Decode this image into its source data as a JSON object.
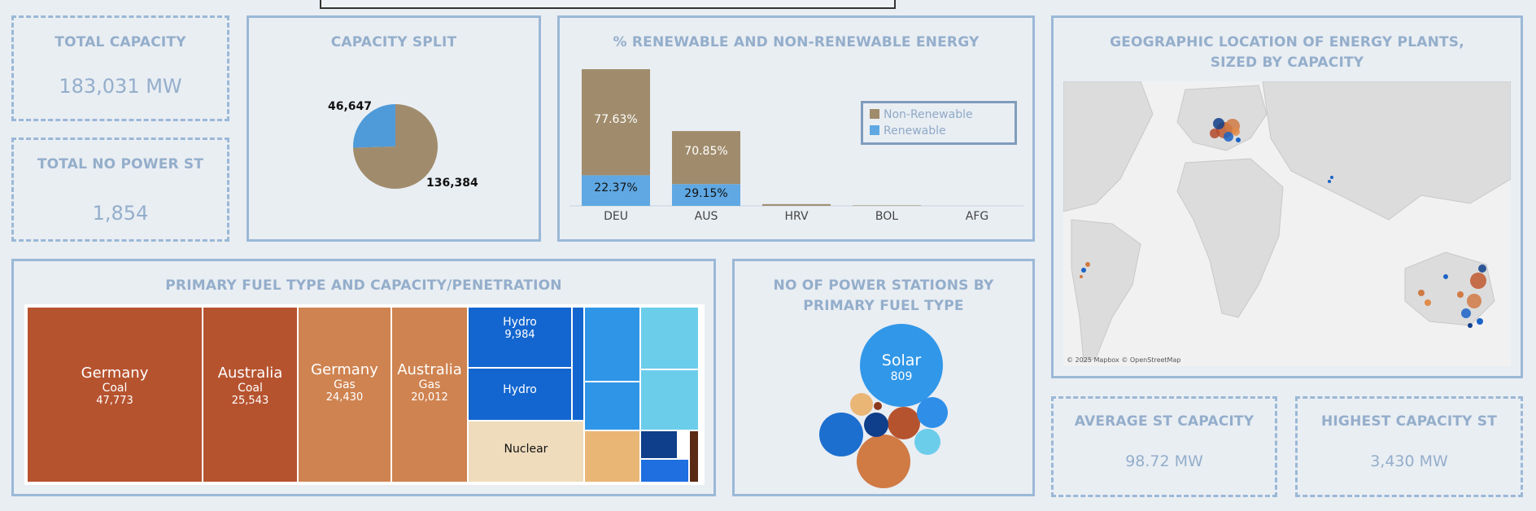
{
  "kpis": {
    "total_capacity": {
      "title": "TOTAL CAPACITY",
      "value": "183,031 MW"
    },
    "total_no_power_st": {
      "title": "TOTAL NO POWER ST",
      "value": "1,854"
    },
    "average_st_capacity": {
      "title": "AVERAGE ST CAPACITY",
      "value": "98.72 MW"
    },
    "highest_capacity_st": {
      "title": "HIGHEST CAPACITY ST",
      "value": "3,430 MW"
    }
  },
  "capacity_split": {
    "title": "CAPACITY SPLIT",
    "chart_data": {
      "type": "pie",
      "slices": [
        {
          "label": "46,647",
          "value": 46647,
          "color": "#4f9bd9"
        },
        {
          "label": "136,384",
          "value": 136384,
          "color": "#a08c6c"
        }
      ]
    }
  },
  "renewable": {
    "title": "% RENEWABLE AND NON-RENEWABLE ENERGY",
    "legend": [
      {
        "name": "Non-Renewable",
        "color": "#a08c6c"
      },
      {
        "name": "Renewable",
        "color": "#5fa8e3"
      }
    ],
    "chart_data": {
      "type": "bar",
      "stacked": true,
      "categories": [
        "DEU",
        "AUS",
        "HRV",
        "BOL",
        "AFG"
      ],
      "series": [
        {
          "name": "Renewable",
          "values": [
            10437,
            7440,
            40,
            15,
            0
          ],
          "labels": [
            "22.37%",
            "29.15%",
            "",
            "",
            ""
          ]
        },
        {
          "name": "Non-Renewable",
          "values": [
            36210,
            18080,
            560,
            160,
            0
          ],
          "labels": [
            "77.63%",
            "70.85%",
            "",
            "",
            ""
          ]
        }
      ],
      "ylim": [
        0,
        46647
      ]
    }
  },
  "map": {
    "title": "GEOGRAPHIC LOCATION OF ENERGY PLANTS, SIZED BY CAPACITY",
    "credit": "© 2025 Mapbox © OpenStreetMap"
  },
  "treemap": {
    "title": "PRIMARY FUEL TYPE AND CAPACITY/PENETRATION",
    "tiles": [
      {
        "country": "Germany",
        "fuel": "Coal",
        "value": "47,773"
      },
      {
        "country": "Australia",
        "fuel": "Coal",
        "value": "25,543"
      },
      {
        "country": "Germany",
        "fuel": "Gas",
        "value": "24,430"
      },
      {
        "country": "Australia",
        "fuel": "Gas",
        "value": "20,012"
      },
      {
        "fuel": "Hydro",
        "value": "9,984"
      },
      {
        "fuel": "Hydro"
      },
      {
        "fuel": "Nuclear"
      }
    ]
  },
  "stations": {
    "title": "NO OF POWER STATIONS BY PRIMARY FUEL TYPE",
    "chart_data": {
      "type": "bubble",
      "bubbles": [
        {
          "label": "Solar",
          "value": 809,
          "color": "#3197e8"
        }
      ]
    }
  }
}
